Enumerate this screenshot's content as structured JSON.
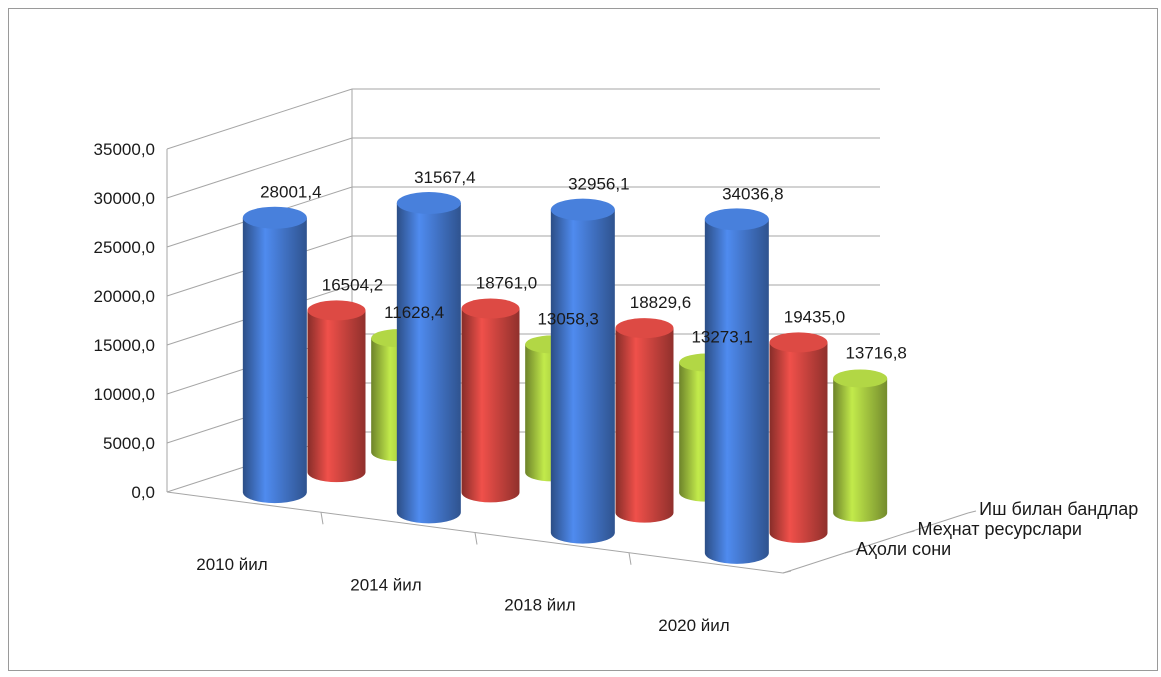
{
  "chart_data": {
    "type": "bar",
    "style": "3d-cylinder",
    "categories": [
      "2010 йил",
      "2014 йил",
      "2018 йил",
      "2020 йил"
    ],
    "series": [
      {
        "name": "Аҳоли сони",
        "color": "#3f6fbf",
        "values": [
          28001.4,
          31567.4,
          32956.1,
          34036.8
        ],
        "labels": [
          "28001,4",
          "31567,4",
          "32956,1",
          "34036,8"
        ]
      },
      {
        "name": "Меҳнат ресурслари",
        "color": "#c0403b",
        "values": [
          16504.2,
          18761.0,
          18829.6,
          19435.0
        ],
        "labels": [
          "16504,2",
          "18761,0",
          "18829,6",
          "19435,0"
        ]
      },
      {
        "name": "Иш билан бандлар",
        "color": "#9bbb3c",
        "values": [
          11628.4,
          13058.3,
          13273.1,
          13716.8
        ],
        "labels": [
          "11628,4",
          "13058,3",
          "13273,1",
          "13716,8"
        ]
      }
    ],
    "y_ticks": [
      "0,0",
      "5000,0",
      "10000,0",
      "15000,0",
      "20000,0",
      "25000,0",
      "30000,0",
      "35000,0"
    ],
    "ylim": [
      0,
      35000
    ],
    "grid": true,
    "legend": "none"
  }
}
